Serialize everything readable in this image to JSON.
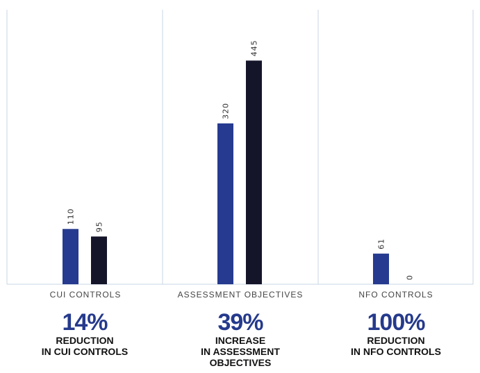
{
  "chart_data": {
    "type": "bar",
    "categories": [
      "CUI CONTROLS",
      "ASSESSMENT OBJECTIVES",
      "NFO CONTROLS"
    ],
    "series": [
      {
        "values": [
          110,
          320,
          61
        ],
        "color": "#263b8f"
      },
      {
        "values": [
          95,
          445,
          0
        ],
        "color": "#15152a"
      }
    ],
    "ylim": [
      0,
      520
    ],
    "grid": "vertical separators"
  },
  "stats": [
    {
      "percent": "14%",
      "line1": "REDUCTION",
      "line2": "IN CUI CONTROLS",
      "line3": ""
    },
    {
      "percent": "39%",
      "line1": "INCREASE",
      "line2": "IN ASSESSMENT",
      "line3": "OBJECTIVES"
    },
    {
      "percent": "100%",
      "line1": "REDUCTION",
      "line2": "IN NFO CONTROLS",
      "line3": ""
    }
  ]
}
